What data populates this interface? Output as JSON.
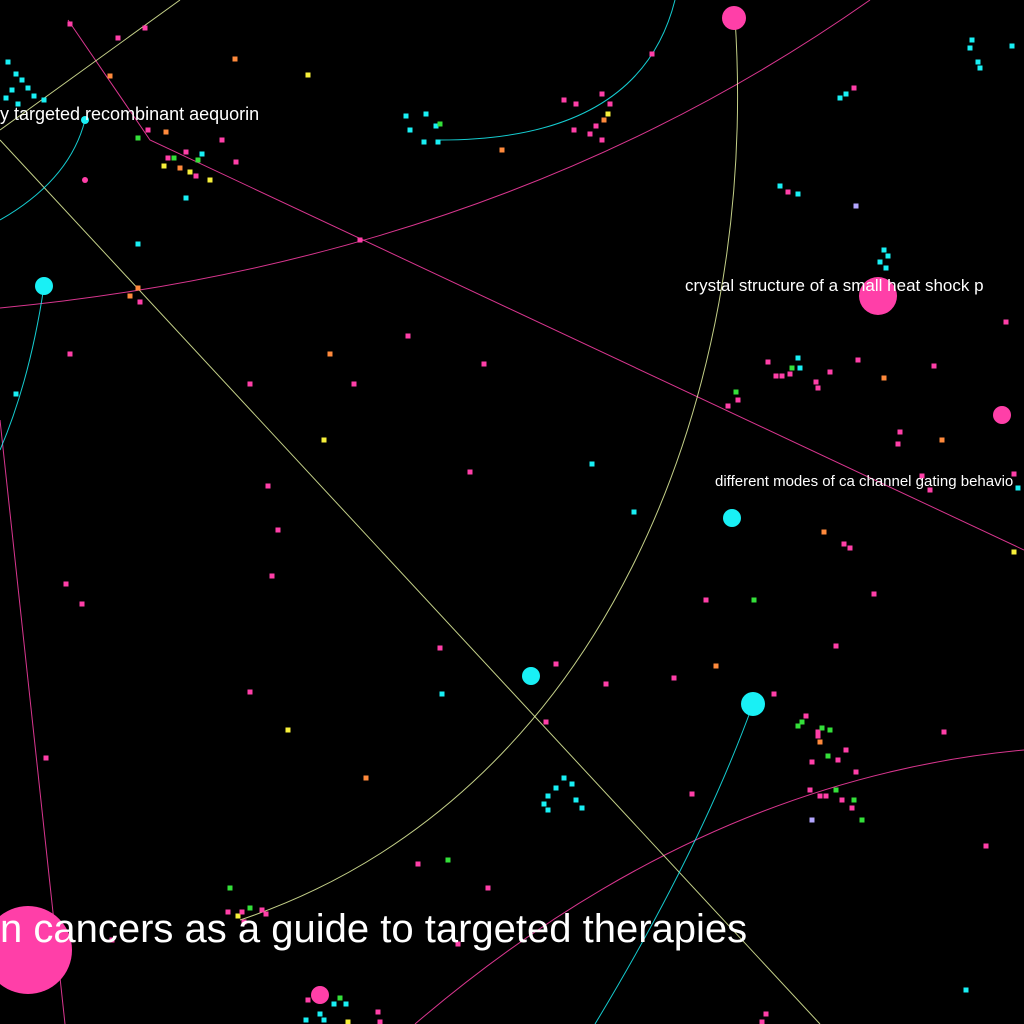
{
  "diagram": {
    "type": "citation-network",
    "background": "#000000",
    "colors": {
      "pink": "#ff3fa8",
      "cyan": "#19f0f5",
      "yellow": "#f7f03a",
      "green": "#34e03a",
      "orange": "#ff8a3c",
      "lavender": "#b3a6ff",
      "edge_pale": "#e6f5a0"
    },
    "labels": [
      {
        "id": "label-aequorin",
        "text": "y targeted recombinant aequorin"
      },
      {
        "id": "label-heat-shock",
        "text": "crystal structure of a small heat shock p"
      },
      {
        "id": "label-ca-channel",
        "text": "different modes of ca channel gating behavio"
      },
      {
        "id": "label-targeted-therapies",
        "text": "n cancers as a guide to targeted therapies"
      }
    ]
  }
}
